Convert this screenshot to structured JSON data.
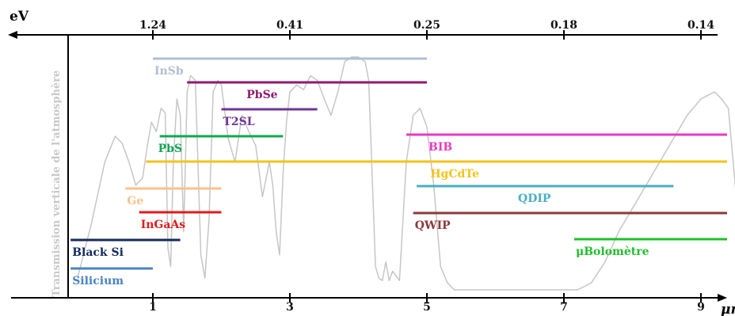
{
  "chart_data": {
    "type": "range",
    "xlabel": "μm",
    "x2label": "eV",
    "ylabel": "Transmission verticale de l'atmosphère",
    "xlim": [
      -0.95,
      9.7
    ],
    "x_ticks": [
      1,
      3,
      5,
      7,
      9
    ],
    "x2_ticks": [
      {
        "x": 1.0,
        "label": "1.24"
      },
      {
        "x": 3.0,
        "label": "0.41"
      },
      {
        "x": 5.0,
        "label": "0.25"
      },
      {
        "x": 7.0,
        "label": "0.18"
      },
      {
        "x": 9.0,
        "label": "0.14"
      }
    ],
    "detectors": [
      {
        "name": "InSb",
        "start": 1.0,
        "end": 5.0,
        "color": "#b0bfd4",
        "label_side": "below-left"
      },
      {
        "name": "PbSe",
        "start": 1.5,
        "end": 5.0,
        "color": "#8e1a6e",
        "label_side": "below-right"
      },
      {
        "name": "T2SL",
        "start": 2.0,
        "end": 3.4,
        "color": "#6f3596",
        "label_side": "below-left"
      },
      {
        "name": "PbS",
        "start": 1.1,
        "end": 2.9,
        "color": "#12a651",
        "label_side": "below-left"
      },
      {
        "name": "BIB",
        "start": 4.7,
        "end": 9.5,
        "color": "#e83ac0",
        "label_side": "below-left"
      },
      {
        "name": "HgCdTe",
        "start": 0.9,
        "end": 9.5,
        "color": "#f5c218",
        "label_side": "below-mid"
      },
      {
        "name": "QDIP",
        "start": 4.85,
        "end": 8.6,
        "color": "#4bafc1",
        "label_side": "below-mid"
      },
      {
        "name": "Ge",
        "start": 0.6,
        "end": 2.0,
        "color": "#f6c28e",
        "label_side": "below-left"
      },
      {
        "name": "InGaAs",
        "start": 0.8,
        "end": 2.0,
        "color": "#e31a1c",
        "label_side": "below-left"
      },
      {
        "name": "QWIP",
        "start": 4.8,
        "end": 9.7,
        "color": "#8b3a3a",
        "label_side": "below-left"
      },
      {
        "name": "Black Si",
        "start": -0.2,
        "end": 1.4,
        "color": "#142a5c",
        "label_side": "below-left"
      },
      {
        "name": "μBolomètre",
        "start": 7.15,
        "end": 9.7,
        "color": "#1fbf2c",
        "label_side": "below-left"
      },
      {
        "name": "Silicium",
        "start": -0.2,
        "end": 1.0,
        "color": "#4a84c0",
        "label_side": "below-left"
      }
    ],
    "transmission_curve": {
      "color": "#c6c6c6",
      "x": [
        -0.1,
        0.1,
        0.3,
        0.45,
        0.55,
        0.65,
        0.75,
        0.85,
        0.92,
        0.98,
        1.05,
        1.12,
        1.18,
        1.22,
        1.26,
        1.3,
        1.35,
        1.4,
        1.45,
        1.5,
        1.55,
        1.62,
        1.7,
        1.76,
        1.82,
        1.88,
        1.95,
        2.0,
        2.1,
        2.2,
        2.3,
        2.4,
        2.5,
        2.6,
        2.7,
        2.75,
        2.8,
        2.85,
        2.9,
        2.95,
        3.0,
        3.1,
        3.2,
        3.3,
        3.4,
        3.5,
        3.6,
        3.7,
        3.8,
        3.9,
        4.0,
        4.1,
        4.15,
        4.2,
        4.25,
        4.3,
        4.35,
        4.4,
        4.45,
        4.5,
        4.6,
        4.7,
        4.8,
        4.9,
        5.0,
        5.1,
        5.2,
        5.3,
        5.4,
        5.6,
        6.0,
        6.5,
        7.0,
        7.2,
        7.4,
        7.6,
        7.8,
        8.0,
        8.2,
        8.4,
        8.6,
        8.8,
        9.0,
        9.2,
        9.3,
        9.4,
        9.5,
        9.6
      ],
      "y": [
        0.05,
        0.28,
        0.55,
        0.66,
        0.63,
        0.55,
        0.45,
        0.48,
        0.62,
        0.72,
        0.68,
        0.78,
        0.76,
        0.18,
        0.1,
        0.55,
        0.82,
        0.75,
        0.25,
        0.85,
        0.92,
        0.9,
        0.15,
        0.05,
        0.3,
        0.85,
        0.9,
        0.88,
        0.65,
        0.55,
        0.75,
        0.68,
        0.62,
        0.4,
        0.55,
        0.45,
        0.25,
        0.15,
        0.5,
        0.72,
        0.85,
        0.88,
        0.86,
        0.92,
        0.9,
        0.82,
        0.75,
        0.85,
        0.98,
        1.0,
        1.0,
        0.98,
        0.9,
        0.5,
        0.1,
        0.05,
        0.04,
        0.12,
        0.04,
        0.08,
        0.04,
        0.55,
        0.75,
        0.78,
        0.7,
        0.45,
        0.1,
        0.03,
        0.0,
        0.0,
        0.0,
        0.0,
        0.0,
        0.0,
        0.03,
        0.12,
        0.25,
        0.35,
        0.45,
        0.55,
        0.65,
        0.75,
        0.82,
        0.85,
        0.82,
        0.78,
        0.45,
        0.1
      ]
    }
  }
}
